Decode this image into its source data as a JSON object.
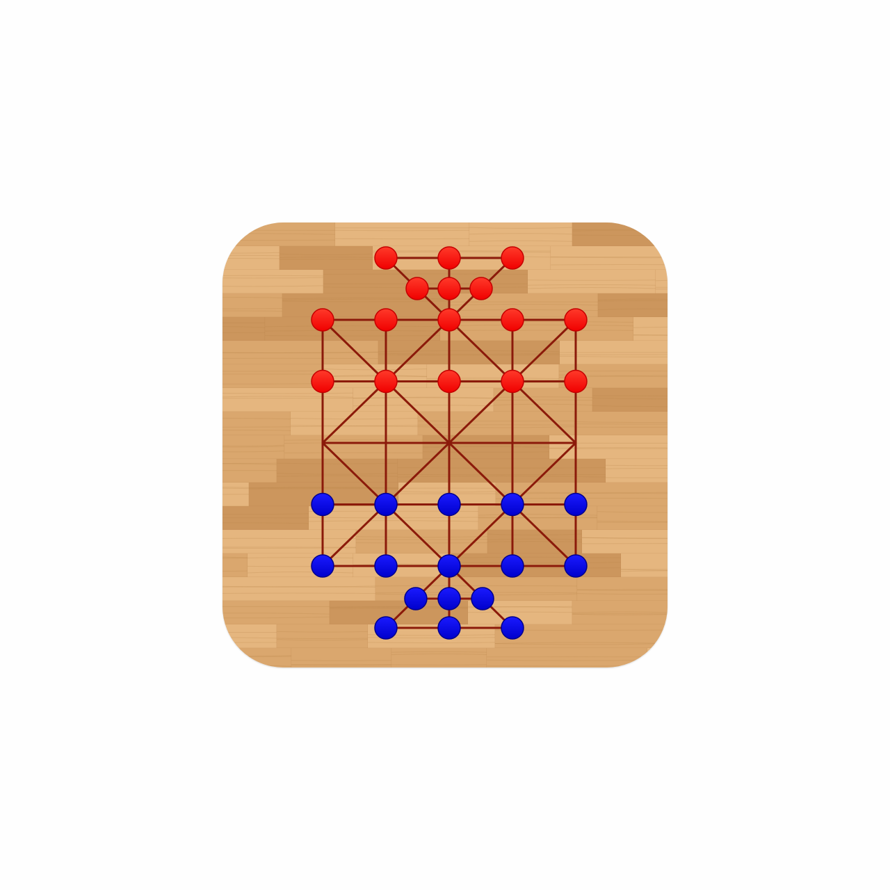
{
  "app_icon": {
    "name": "board-game-app-icon",
    "background": "wood-planks"
  },
  "colors": {
    "page_background": "#fefefe",
    "wood_base": "#d9a76f",
    "wood_light": "#e6b982",
    "wood_dark": "#c9935a",
    "wood_grain": "#b98248",
    "board_line": "#8b1a0a",
    "red_piece": "#ff0000",
    "red_piece_edge": "#c40000",
    "blue_piece": "#0000e6",
    "blue_piece_edge": "#00008c"
  },
  "board": {
    "columns": 5,
    "rows": 5,
    "triangle_rows": 2,
    "diagonal_pattern": "alternating-x"
  },
  "pieces": {
    "red": {
      "player": "top",
      "count": 16,
      "grid_rows": [
        0,
        1
      ],
      "triangle": [
        "apex",
        "inner-left",
        "inner-center",
        "inner-right",
        "outer-left",
        "outer-center",
        "outer-right"
      ]
    },
    "blue": {
      "player": "bottom",
      "count": 16,
      "grid_rows": [
        3,
        4
      ],
      "triangle": [
        "apex",
        "inner-left",
        "inner-center",
        "inner-right",
        "outer-left",
        "outer-center",
        "outer-right"
      ]
    }
  }
}
